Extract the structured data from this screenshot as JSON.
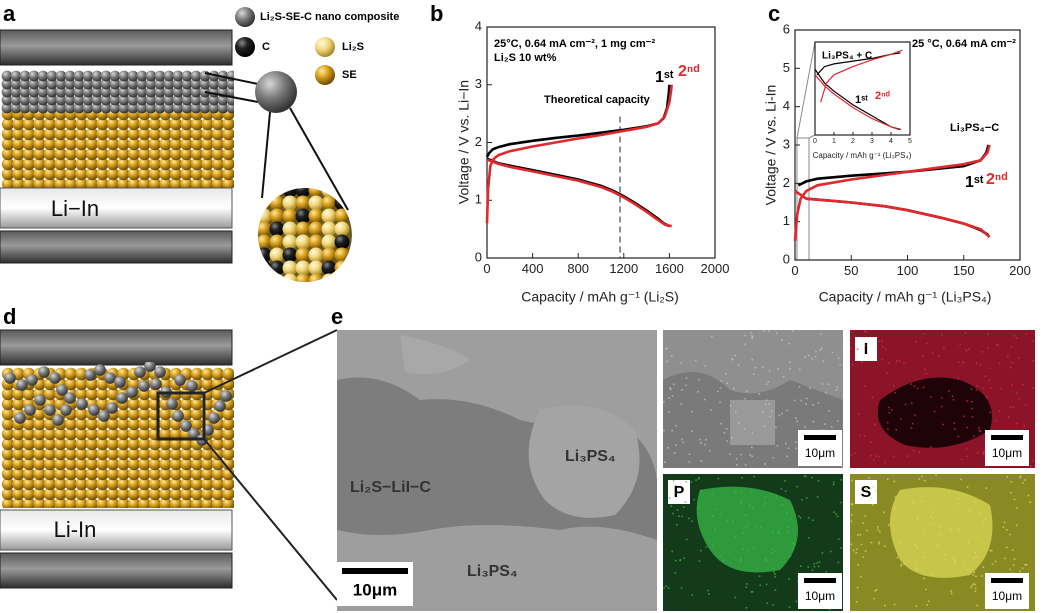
{
  "panel_labels": [
    "a",
    "b",
    "c",
    "d",
    "e"
  ],
  "panel_a": {
    "legend": [
      "Li₂S-SE-C nano composite",
      "C",
      "Li₂S",
      "SE"
    ],
    "electrode": "Li−In"
  },
  "panel_d": {
    "electrode": "Li-In"
  },
  "panel_e": {
    "labels": [
      "Li₃PS₄",
      "Li₂S−LiI−C",
      "Li₃PS₄"
    ],
    "scale_bar": "10μm",
    "maps": [
      "I",
      "P",
      "S"
    ]
  },
  "chart_data": [
    {
      "type": "line",
      "xlabel": "Capacity / mAh g⁻¹ (Li₂S)",
      "ylabel": "Voltage / V vs. Li−In",
      "annotations": [
        "25°C, 0.64 mA cm⁻², 1 mg cm⁻²",
        "Li₂S 10 wt%",
        "Theoretical capacity"
      ],
      "theoretical_capacity": 1167,
      "xlim": [
        0,
        2000
      ],
      "xticks": [
        0,
        400,
        800,
        1200,
        1600,
        2000
      ],
      "ylim": [
        0,
        4
      ],
      "yticks": [
        0,
        1,
        2,
        3,
        4
      ],
      "series": [
        {
          "name": "1ˢᵗ",
          "color": "#000000",
          "x": [
            0,
            20,
            50,
            100,
            200,
            400,
            600,
            800,
            1000,
            1200,
            1400,
            1500,
            1550,
            1580,
            1595,
            1600,
            null,
            0,
            50,
            100,
            200,
            400,
            600,
            800,
            1000,
            1100,
            1200,
            1300,
            1400,
            1500,
            1550,
            1600
          ],
          "values": [
            1.75,
            1.82,
            1.88,
            1.92,
            1.97,
            2.03,
            2.08,
            2.12,
            2.17,
            2.22,
            2.28,
            2.33,
            2.42,
            2.6,
            2.85,
            3.0,
            null,
            1.72,
            1.68,
            1.64,
            1.6,
            1.52,
            1.44,
            1.36,
            1.25,
            1.17,
            1.07,
            0.95,
            0.82,
            0.68,
            0.6,
            0.55
          ]
        },
        {
          "name": "2ⁿᵈ",
          "color": "#e0282e",
          "x": [
            0,
            10,
            30,
            60,
            100,
            200,
            400,
            600,
            800,
            1000,
            1200,
            1400,
            1500,
            1560,
            1600,
            1615,
            1620,
            null,
            0,
            50,
            100,
            200,
            400,
            600,
            800,
            1000,
            1100,
            1200,
            1300,
            1400,
            1500,
            1560,
            1620
          ],
          "values": [
            0.6,
            1.2,
            1.6,
            1.72,
            1.78,
            1.85,
            1.93,
            2.0,
            2.07,
            2.13,
            2.2,
            2.27,
            2.33,
            2.45,
            2.7,
            2.9,
            3.0,
            null,
            1.7,
            1.67,
            1.63,
            1.58,
            1.5,
            1.42,
            1.34,
            1.23,
            1.15,
            1.05,
            0.93,
            0.8,
            0.66,
            0.58,
            0.55
          ]
        }
      ]
    },
    {
      "type": "line",
      "xlabel": "Capacity / mAh g⁻¹ (Li₃PS₄)",
      "ylabel": "Voltage / V vs. Li-In",
      "annotations": [
        "25 °C, 0.64 mA cm⁻²",
        "Li₃PS₄−C"
      ],
      "xlim": [
        0,
        200
      ],
      "xticks": [
        0,
        50,
        100,
        150,
        200
      ],
      "ylim": [
        0,
        6
      ],
      "yticks": [
        0,
        1,
        2,
        3,
        4,
        5,
        6
      ],
      "series": [
        {
          "name": "1ˢᵗ",
          "color": "#000000",
          "x": [
            3,
            10,
            20,
            50,
            100,
            150,
            165,
            170,
            172,
            null,
            10,
            30,
            50,
            80,
            100,
            130,
            150,
            165,
            172
          ],
          "values": [
            1.95,
            2.05,
            2.12,
            2.2,
            2.3,
            2.45,
            2.6,
            2.8,
            3.0,
            null,
            1.6,
            1.55,
            1.5,
            1.4,
            1.3,
            1.1,
            0.95,
            0.78,
            0.65
          ]
        },
        {
          "name": "2ⁿᵈ",
          "color": "#e0282e",
          "x": [
            0,
            2,
            5,
            10,
            20,
            50,
            100,
            150,
            165,
            171,
            173,
            null,
            0,
            10,
            30,
            50,
            80,
            100,
            130,
            150,
            165,
            173
          ],
          "values": [
            0.5,
            1.2,
            1.6,
            1.8,
            1.95,
            2.1,
            2.3,
            2.5,
            2.6,
            2.8,
            3.0,
            null,
            1.8,
            1.6,
            1.55,
            1.5,
            1.4,
            1.3,
            1.1,
            0.95,
            0.8,
            0.6
          ]
        }
      ]
    },
    {
      "type": "line",
      "title": "Li₃PS₄ + C",
      "xlabel": "Capacity / mAh g⁻¹ (Li₃PS₄)",
      "xlim": [
        0,
        5
      ],
      "xticks": [
        0,
        1,
        2,
        3,
        4,
        5
      ],
      "ylim": [
        0,
        3.4
      ],
      "series": [
        {
          "name": "1ˢᵗ",
          "color": "#000000",
          "x": [
            0.1,
            0.5,
            1,
            2,
            3,
            4,
            4.5,
            null,
            0,
            0.5,
            1,
            2,
            3,
            4,
            4.5
          ],
          "values": [
            2.2,
            2.5,
            2.6,
            2.7,
            2.8,
            2.95,
            3.0,
            null,
            2.4,
            1.9,
            1.6,
            1.1,
            0.7,
            0.3,
            0.2
          ]
        },
        {
          "name": "2ⁿᵈ",
          "color": "#e0282e",
          "x": [
            0.3,
            0.6,
            1,
            2,
            3,
            4,
            4.6,
            null,
            0,
            0.5,
            1,
            2,
            3,
            4,
            4.4
          ],
          "values": [
            1.2,
            1.9,
            2.2,
            2.5,
            2.75,
            2.95,
            3.1,
            null,
            2.2,
            1.8,
            1.5,
            1.0,
            0.6,
            0.3,
            0.2
          ]
        }
      ]
    }
  ]
}
